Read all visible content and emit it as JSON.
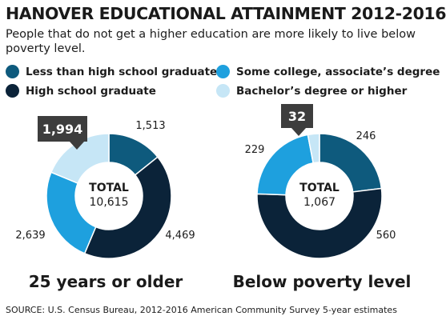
{
  "title": "HANOVER EDUCATIONAL ATTAINMENT 2012-2016",
  "subtitle": "People that do not get a higher education are more likely to live below poverty level.",
  "legend": [
    {
      "label": "Less than high school graduate",
      "color": "#0e5a7d"
    },
    {
      "label": "High school graduate",
      "color": "#0b2339"
    },
    {
      "label": "Some college, associate’s degree",
      "color": "#1ea0de"
    },
    {
      "label": "Bachelor’s degree or higher",
      "color": "#c6e6f6"
    }
  ],
  "chart_data": [
    {
      "type": "pie",
      "title": "25 years or older",
      "center_label": "TOTAL",
      "total": "10,615",
      "categories": [
        "Less than high school graduate",
        "High school graduate",
        "Some college, associate’s degree",
        "Bachelor’s degree or higher"
      ],
      "values": [
        1513,
        4469,
        2639,
        1994
      ],
      "value_labels": [
        "1,513",
        "4,469",
        "2,639",
        "1,994"
      ],
      "callout": "1,994"
    },
    {
      "type": "pie",
      "title": "Below poverty level",
      "center_label": "TOTAL",
      "total": "1,067",
      "categories": [
        "Less than high school graduate",
        "High school graduate",
        "Some college, associate’s degree",
        "Bachelor’s degree or higher"
      ],
      "values": [
        246,
        560,
        229,
        32
      ],
      "value_labels": [
        "246",
        "560",
        "229",
        "32"
      ],
      "callout": "32"
    }
  ],
  "source": "SOURCE: U.S. Census Bureau, 2012-2016 American Community Survey 5-year estimates"
}
